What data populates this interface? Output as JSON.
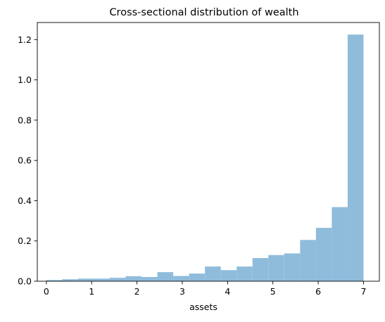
{
  "chart_data": {
    "type": "bar",
    "title": "Cross-sectional distribution of wealth",
    "xlabel": "assets",
    "ylabel": "",
    "xlim": [
      -0.2,
      7.35
    ],
    "ylim": [
      0,
      1.285
    ],
    "xticks": [
      0,
      1,
      2,
      3,
      4,
      5,
      6,
      7
    ],
    "yticks": [
      0.0,
      0.2,
      0.4,
      0.6,
      0.8,
      1.0,
      1.2
    ],
    "xtick_labels": [
      "0",
      "1",
      "2",
      "3",
      "4",
      "5",
      "6",
      "7"
    ],
    "ytick_labels": [
      "0.0",
      "0.2",
      "0.4",
      "0.6",
      "0.8",
      "1.0",
      "1.2"
    ],
    "grid": false,
    "legend": "none",
    "bar_color": "#8fbcdb",
    "bins": [
      {
        "x0": 0.0,
        "x1": 0.35,
        "value": 0.006
      },
      {
        "x0": 0.35,
        "x1": 0.7,
        "value": 0.01
      },
      {
        "x0": 0.7,
        "x1": 1.05,
        "value": 0.013
      },
      {
        "x0": 1.05,
        "x1": 1.4,
        "value": 0.013
      },
      {
        "x0": 1.4,
        "x1": 1.75,
        "value": 0.017
      },
      {
        "x0": 1.75,
        "x1": 2.1,
        "value": 0.025
      },
      {
        "x0": 2.1,
        "x1": 2.45,
        "value": 0.021
      },
      {
        "x0": 2.45,
        "x1": 2.8,
        "value": 0.045
      },
      {
        "x0": 2.8,
        "x1": 3.15,
        "value": 0.026
      },
      {
        "x0": 3.15,
        "x1": 3.5,
        "value": 0.038
      },
      {
        "x0": 3.5,
        "x1": 3.85,
        "value": 0.073
      },
      {
        "x0": 3.85,
        "x1": 4.2,
        "value": 0.055
      },
      {
        "x0": 4.2,
        "x1": 4.55,
        "value": 0.073
      },
      {
        "x0": 4.55,
        "x1": 4.9,
        "value": 0.115
      },
      {
        "x0": 4.9,
        "x1": 5.25,
        "value": 0.13
      },
      {
        "x0": 5.25,
        "x1": 5.6,
        "value": 0.138
      },
      {
        "x0": 5.6,
        "x1": 5.95,
        "value": 0.205
      },
      {
        "x0": 5.95,
        "x1": 6.3,
        "value": 0.265
      },
      {
        "x0": 6.3,
        "x1": 6.65,
        "value": 0.368
      },
      {
        "x0": 6.65,
        "x1": 7.0,
        "value": 1.225
      }
    ]
  }
}
